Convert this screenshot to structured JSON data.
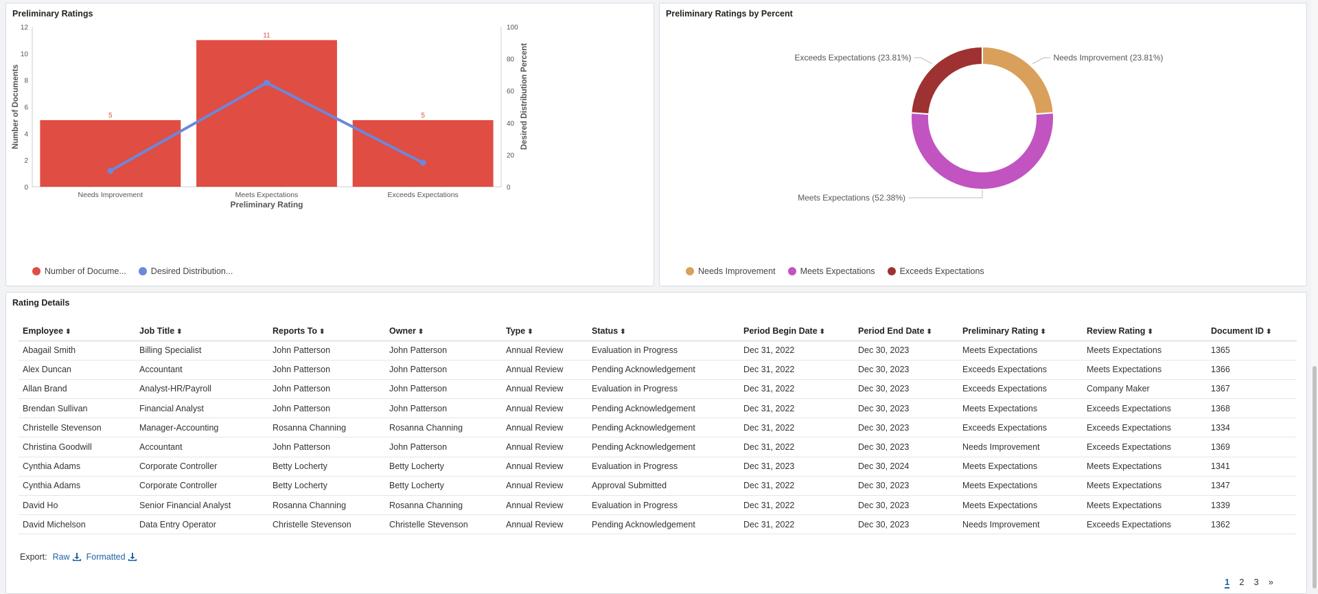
{
  "bar_panel": {
    "title": "Preliminary Ratings",
    "legend": [
      {
        "label": "Number of Docume...",
        "color": "#e04d42"
      },
      {
        "label": "Desired Distribution...",
        "color": "#6d87db"
      }
    ]
  },
  "donut_panel": {
    "title": "Preliminary Ratings by Percent",
    "legend": [
      {
        "label": "Needs Improvement",
        "color": "#d9a05b"
      },
      {
        "label": "Meets Expectations",
        "color": "#c154c1"
      },
      {
        "label": "Exceeds Expectations",
        "color": "#9e3232"
      }
    ]
  },
  "chart_data": [
    {
      "type": "bar",
      "title": "Preliminary Ratings",
      "xlabel": "Preliminary Rating",
      "ylabel": "Number of Documents",
      "y2label": "Desired Distribution Percent",
      "categories": [
        "Needs Improvement",
        "Meets Expectations",
        "Exceeds Expectations"
      ],
      "ylim": [
        0,
        12
      ],
      "yticks": [
        0,
        2,
        4,
        6,
        8,
        10,
        12
      ],
      "y2lim": [
        0,
        100
      ],
      "y2ticks": [
        0,
        20,
        40,
        60,
        80,
        100
      ],
      "series": [
        {
          "name": "Number of Documents",
          "values": [
            5,
            11,
            5
          ],
          "color": "#e04d42",
          "axis": "left",
          "kind": "bar"
        },
        {
          "name": "Desired Distribution Percent",
          "values": [
            10,
            65,
            15
          ],
          "color": "#6d87db",
          "axis": "right",
          "kind": "line"
        }
      ],
      "legend_position": "bottom-left"
    },
    {
      "type": "pie",
      "subtype": "donut",
      "title": "Preliminary Ratings by Percent",
      "slices": [
        {
          "label": "Needs Improvement (23.81%)",
          "name": "Needs Improvement",
          "value": 23.81,
          "color": "#d9a05b"
        },
        {
          "label": "Meets Expectations (52.38%)",
          "name": "Meets Expectations",
          "value": 52.38,
          "color": "#c154c1"
        },
        {
          "label": "Exceeds Expectations (23.81%)",
          "name": "Exceeds Expectations",
          "value": 23.81,
          "color": "#9e3232"
        }
      ],
      "legend_position": "bottom-left"
    }
  ],
  "table": {
    "title": "Rating Details",
    "sort_icon": "sort-icon",
    "columns": [
      "Employee",
      "Job Title",
      "Reports To",
      "Owner",
      "Type",
      "Status",
      "Period Begin Date",
      "Period End Date",
      "Preliminary Rating",
      "Review Rating",
      "Document ID"
    ],
    "rows": [
      [
        "Abagail Smith",
        "Billing Specialist",
        "John Patterson",
        "John Patterson",
        "Annual Review",
        "Evaluation in Progress",
        "Dec 31, 2022",
        "Dec 30, 2023",
        "Meets Expectations",
        "Meets Expectations",
        "1365"
      ],
      [
        "Alex Duncan",
        "Accountant",
        "John Patterson",
        "John Patterson",
        "Annual Review",
        "Pending Acknowledgement",
        "Dec 31, 2022",
        "Dec 30, 2023",
        "Exceeds Expectations",
        "Meets Expectations",
        "1366"
      ],
      [
        "Allan Brand",
        "Analyst-HR/Payroll",
        "John Patterson",
        "John Patterson",
        "Annual Review",
        "Evaluation in Progress",
        "Dec 31, 2022",
        "Dec 30, 2023",
        "Exceeds Expectations",
        "Company Maker",
        "1367"
      ],
      [
        "Brendan Sullivan",
        "Financial Analyst",
        "John Patterson",
        "John Patterson",
        "Annual Review",
        "Pending Acknowledgement",
        "Dec 31, 2022",
        "Dec 30, 2023",
        "Meets Expectations",
        "Exceeds Expectations",
        "1368"
      ],
      [
        "Christelle Stevenson",
        "Manager-Accounting",
        "Rosanna Channing",
        "Rosanna Channing",
        "Annual Review",
        "Pending Acknowledgement",
        "Dec 31, 2022",
        "Dec 30, 2023",
        "Exceeds Expectations",
        "Exceeds Expectations",
        "1334"
      ],
      [
        "Christina Goodwill",
        "Accountant",
        "John Patterson",
        "John Patterson",
        "Annual Review",
        "Pending Acknowledgement",
        "Dec 31, 2022",
        "Dec 30, 2023",
        "Needs Improvement",
        "Exceeds Expectations",
        "1369"
      ],
      [
        "Cynthia Adams",
        "Corporate Controller",
        "Betty Locherty",
        "Betty Locherty",
        "Annual Review",
        "Evaluation in Progress",
        "Dec 31, 2023",
        "Dec 30, 2024",
        "Meets Expectations",
        "Meets Expectations",
        "1341"
      ],
      [
        "Cynthia Adams",
        "Corporate Controller",
        "Betty Locherty",
        "Betty Locherty",
        "Annual Review",
        "Approval Submitted",
        "Dec 31, 2022",
        "Dec 30, 2023",
        "Meets Expectations",
        "Meets Expectations",
        "1347"
      ],
      [
        "David Ho",
        "Senior Financial Analyst",
        "Rosanna Channing",
        "Rosanna Channing",
        "Annual Review",
        "Evaluation in Progress",
        "Dec 31, 2022",
        "Dec 30, 2023",
        "Meets Expectations",
        "Meets Expectations",
        "1339"
      ],
      [
        "David Michelson",
        "Data Entry Operator",
        "Christelle Stevenson",
        "Christelle Stevenson",
        "Annual Review",
        "Pending Acknowledgement",
        "Dec 31, 2022",
        "Dec 30, 2023",
        "Needs Improvement",
        "Exceeds Expectations",
        "1362"
      ]
    ]
  },
  "export": {
    "label": "Export:",
    "raw_label": "Raw",
    "formatted_label": "Formatted",
    "icon": "download-icon"
  },
  "pagination": {
    "pages": [
      "1",
      "2",
      "3"
    ],
    "next_label": "»",
    "current": 1
  },
  "colors": {
    "accent": "#1f63a8",
    "bar": "#e04d42",
    "line": "#6d87db"
  }
}
